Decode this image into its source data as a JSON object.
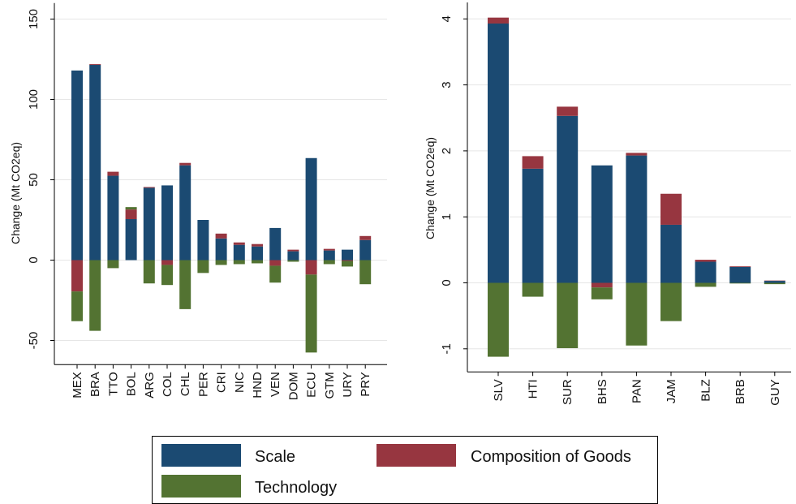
{
  "colors": {
    "scale": "#1b4a72",
    "composition": "#973640",
    "technology": "#537332"
  },
  "legend": {
    "items": [
      {
        "key": "scale",
        "label": "Scale"
      },
      {
        "key": "composition",
        "label": "Composition of Goods"
      },
      {
        "key": "technology",
        "label": "Technology"
      }
    ]
  },
  "chart_data": [
    {
      "type": "bar",
      "stacked": true,
      "ylabel": "Change (Mt CO2eq)",
      "ylim": [
        -65,
        160
      ],
      "yticks": [
        -50,
        0,
        50,
        100,
        150
      ],
      "ytick_labels": [
        "-50",
        "0",
        "50",
        "100",
        "150"
      ],
      "grid": true,
      "categories": [
        "MEX",
        "BRA",
        "TTO",
        "BOL",
        "ARG",
        "COL",
        "CHL",
        "PER",
        "CRI",
        "NIC",
        "HND",
        "VEN",
        "DOM",
        "ECU",
        "GTM",
        "URY",
        "PRY"
      ],
      "series": [
        {
          "name": "Scale",
          "key": "scale",
          "values": [
            118,
            121.5,
            52.5,
            25.5,
            45,
            46.5,
            59,
            25,
            13.5,
            9.5,
            8.5,
            20,
            5.5,
            63.5,
            6,
            6.5,
            12.5
          ]
        },
        {
          "name": "Composition of Goods",
          "key": "composition",
          "values": [
            -19.5,
            0.5,
            2.5,
            6,
            0.5,
            -3,
            1.5,
            0,
            3,
            1.5,
            1.5,
            -3.5,
            1,
            -9,
            1,
            -0.5,
            2.5
          ]
        },
        {
          "name": "Technology",
          "key": "technology",
          "values": [
            -18.5,
            -44,
            -5,
            1.5,
            -14.5,
            -12.5,
            -30.5,
            -8,
            -3,
            -2.5,
            -2,
            -10.5,
            -1,
            -48.5,
            -2.5,
            -3.5,
            -15
          ]
        }
      ]
    },
    {
      "type": "bar",
      "stacked": true,
      "ylabel": "Change (Mt CO2eq)",
      "ylim": [
        -1.35,
        4.25
      ],
      "yticks": [
        -1,
        0,
        1,
        2,
        3,
        4
      ],
      "ytick_labels": [
        "-1",
        "0",
        "1",
        "2",
        "3",
        "4"
      ],
      "grid": true,
      "categories": [
        "SLV",
        "HTI",
        "SUR",
        "BHS",
        "PAN",
        "JAM",
        "BLZ",
        "BRB",
        "GUY"
      ],
      "series": [
        {
          "name": "Scale",
          "key": "scale",
          "values": [
            3.93,
            1.73,
            2.53,
            1.78,
            1.93,
            0.88,
            0.32,
            0.24,
            0.03
          ]
        },
        {
          "name": "Composition of Goods",
          "key": "composition",
          "values": [
            0.09,
            0.19,
            0.14,
            -0.07,
            0.04,
            0.47,
            0.03,
            0.01,
            0.005
          ]
        },
        {
          "name": "Technology",
          "key": "technology",
          "values": [
            -1.12,
            -0.21,
            -0.99,
            -0.18,
            -0.95,
            -0.58,
            -0.06,
            -0.01,
            -0.02
          ]
        }
      ]
    }
  ]
}
